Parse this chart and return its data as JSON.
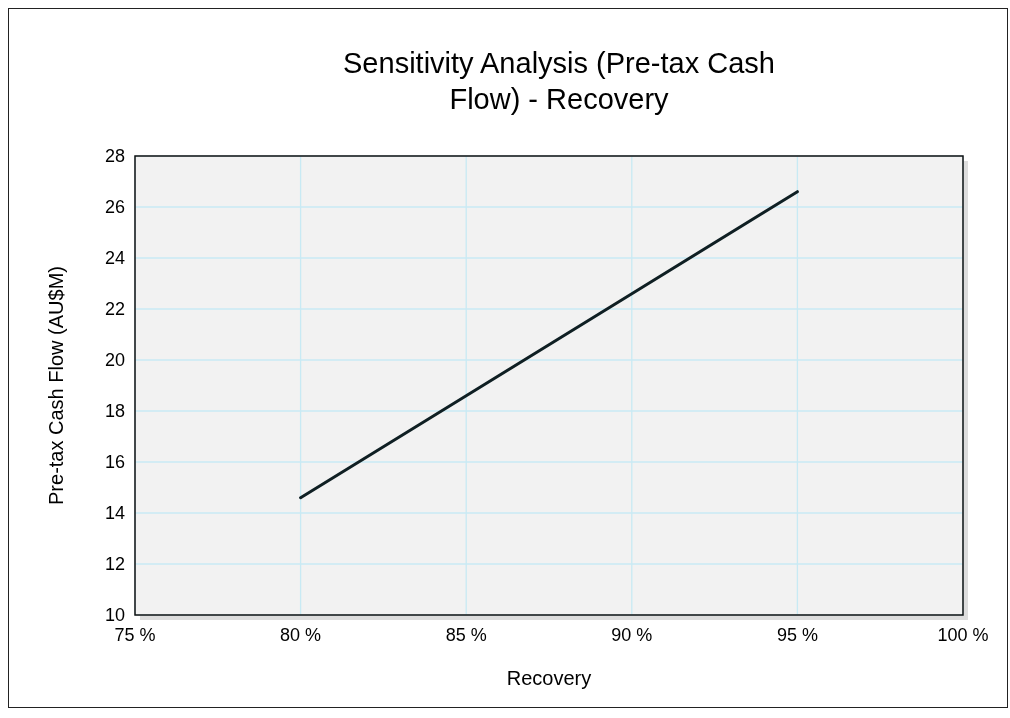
{
  "chart_data": {
    "type": "line",
    "title": "Sensitivity Analysis (Pre-tax Cash Flow) - Recovery",
    "xlabel": "Recovery",
    "ylabel": "Pre-tax Cash Flow (AU$M)",
    "x": [
      80,
      85,
      90,
      95
    ],
    "series": [
      {
        "color": "#0f1f23",
        "values": [
          14.6,
          18.6,
          22.6,
          26.6
        ]
      }
    ],
    "xlim": [
      75,
      100
    ],
    "xticks": [
      {
        "value": 75,
        "label": "75 %"
      },
      {
        "value": 80,
        "label": "80 %"
      },
      {
        "value": 85,
        "label": "85 %"
      },
      {
        "value": 90,
        "label": "90 %"
      },
      {
        "value": 95,
        "label": "95 %"
      },
      {
        "value": 100,
        "label": "100 %"
      }
    ],
    "ylim": [
      10,
      28
    ],
    "yticks": [
      10,
      12,
      14,
      16,
      18,
      20,
      22,
      24,
      26,
      28
    ],
    "grid": true,
    "marker": "none",
    "line_style": "solid"
  }
}
